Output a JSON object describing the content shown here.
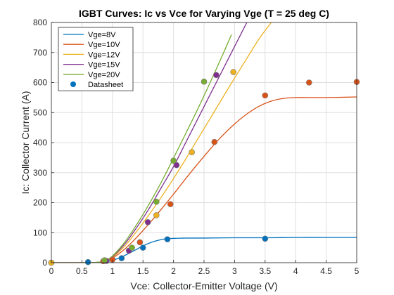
{
  "chart_data": {
    "type": "line",
    "title": "IGBT Curves: Ic vs Vce for Varying Vge  (T = 25 deg C)",
    "xlabel": "Vce: Collector-Emitter Voltage (V)",
    "ylabel": "Ic: Collector Current (A)",
    "xlim": [
      0,
      5
    ],
    "ylim": [
      0,
      800
    ],
    "xticks": [
      0,
      0.5,
      1,
      1.5,
      2,
      2.5,
      3,
      3.5,
      4,
      4.5,
      5
    ],
    "xtick_labels": [
      "0",
      "0.5",
      "1",
      "1.5",
      "2",
      "2.5",
      "3",
      "3.5",
      "4",
      "4.5",
      "5"
    ],
    "yticks": [
      0,
      100,
      200,
      300,
      400,
      500,
      600,
      700,
      800
    ],
    "ytick_labels": [
      "0",
      "100",
      "200",
      "300",
      "400",
      "500",
      "600",
      "700",
      "800"
    ],
    "grid": true,
    "legend_position": "top-left",
    "series": [
      {
        "name": "Vge=8V",
        "color": "#0072BD",
        "x": [
          0,
          0.6,
          0.8,
          0.9,
          1.0,
          1.1,
          1.2,
          1.3,
          1.4,
          1.5,
          1.6,
          1.7,
          1.8,
          1.9,
          2.0,
          2.2,
          2.5,
          3.0,
          3.5,
          4.0,
          4.5,
          5.0
        ],
        "y": [
          0,
          0,
          1,
          3,
          8,
          15,
          24,
          34,
          45,
          56,
          65,
          72,
          77,
          80,
          81,
          82,
          82,
          83,
          83,
          84,
          84,
          84
        ]
      },
      {
        "name": "Vge=10V",
        "color": "#D95319",
        "x": [
          0,
          0.6,
          0.8,
          0.9,
          1.0,
          1.2,
          1.4,
          1.6,
          1.8,
          2.0,
          2.2,
          2.4,
          2.6,
          2.8,
          3.0,
          3.2,
          3.4,
          3.6,
          3.8,
          4.0,
          4.2,
          4.5,
          4.8,
          5.0
        ],
        "y": [
          0,
          0,
          2,
          6,
          15,
          45,
          85,
          130,
          178,
          228,
          280,
          330,
          378,
          423,
          462,
          495,
          521,
          538,
          547,
          550,
          550,
          550,
          551,
          552
        ]
      },
      {
        "name": "Vge=12V",
        "color": "#EDB120",
        "x": [
          0,
          0.6,
          0.8,
          0.9,
          1.0,
          1.2,
          1.4,
          1.6,
          1.8,
          2.0,
          2.2,
          2.4,
          2.6,
          2.8,
          3.0,
          3.2,
          3.4,
          3.6
        ],
        "y": [
          0,
          0,
          2,
          7,
          18,
          55,
          105,
          160,
          218,
          280,
          345,
          413,
          480,
          548,
          615,
          680,
          745,
          800
        ]
      },
      {
        "name": "Vge=15V",
        "color": "#7E2F8E",
        "x": [
          0,
          0.6,
          0.8,
          0.9,
          1.0,
          1.2,
          1.4,
          1.6,
          1.8,
          2.0,
          2.2,
          2.4,
          2.6,
          2.8,
          3.0,
          3.2
        ],
        "y": [
          0,
          0,
          2,
          8,
          20,
          62,
          118,
          180,
          250,
          320,
          400,
          480,
          560,
          640,
          720,
          800
        ]
      },
      {
        "name": "Vge=20V",
        "color": "#77AC30",
        "x": [
          0,
          0.6,
          0.8,
          0.9,
          1.0,
          1.2,
          1.4,
          1.6,
          1.8,
          2.0,
          2.2,
          2.4,
          2.6,
          2.8,
          2.95
        ],
        "y": [
          0,
          0,
          2,
          9,
          22,
          68,
          128,
          195,
          268,
          348,
          430,
          513,
          600,
          690,
          760
        ]
      }
    ],
    "datasheet": {
      "name": "Datasheet",
      "legend_color": "#0072BD",
      "points": [
        {
          "x": 0.0,
          "y": 0,
          "color": "#0072BD"
        },
        {
          "x": 0.6,
          "y": 2,
          "color": "#0072BD"
        },
        {
          "x": 1.15,
          "y": 15,
          "color": "#0072BD"
        },
        {
          "x": 1.5,
          "y": 50,
          "color": "#0072BD"
        },
        {
          "x": 1.9,
          "y": 78,
          "color": "#0072BD"
        },
        {
          "x": 3.5,
          "y": 80,
          "color": "#0072BD"
        },
        {
          "x": 0.0,
          "y": 0,
          "color": "#D95319"
        },
        {
          "x": 0.85,
          "y": 5,
          "color": "#D95319"
        },
        {
          "x": 1.0,
          "y": 10,
          "color": "#D95319"
        },
        {
          "x": 1.45,
          "y": 68,
          "color": "#D95319"
        },
        {
          "x": 1.95,
          "y": 195,
          "color": "#D95319"
        },
        {
          "x": 2.67,
          "y": 402,
          "color": "#D95319"
        },
        {
          "x": 3.5,
          "y": 557,
          "color": "#D95319"
        },
        {
          "x": 4.22,
          "y": 600,
          "color": "#D95319"
        },
        {
          "x": 5.0,
          "y": 602,
          "color": "#D95319"
        },
        {
          "x": 0.0,
          "y": 0,
          "color": "#EDB120"
        },
        {
          "x": 1.72,
          "y": 158,
          "color": "#EDB120"
        },
        {
          "x": 2.3,
          "y": 368,
          "color": "#EDB120"
        },
        {
          "x": 2.98,
          "y": 635,
          "color": "#EDB120"
        },
        {
          "x": 0.9,
          "y": 6,
          "color": "#7E2F8E"
        },
        {
          "x": 1.27,
          "y": 40,
          "color": "#7E2F8E"
        },
        {
          "x": 1.58,
          "y": 135,
          "color": "#7E2F8E"
        },
        {
          "x": 2.05,
          "y": 325,
          "color": "#7E2F8E"
        },
        {
          "x": 2.7,
          "y": 625,
          "color": "#7E2F8E"
        },
        {
          "x": 0.87,
          "y": 8,
          "color": "#77AC30"
        },
        {
          "x": 1.32,
          "y": 50,
          "color": "#77AC30"
        },
        {
          "x": 1.72,
          "y": 203,
          "color": "#77AC30"
        },
        {
          "x": 2.0,
          "y": 340,
          "color": "#77AC30"
        },
        {
          "x": 2.5,
          "y": 603,
          "color": "#77AC30"
        }
      ]
    }
  }
}
